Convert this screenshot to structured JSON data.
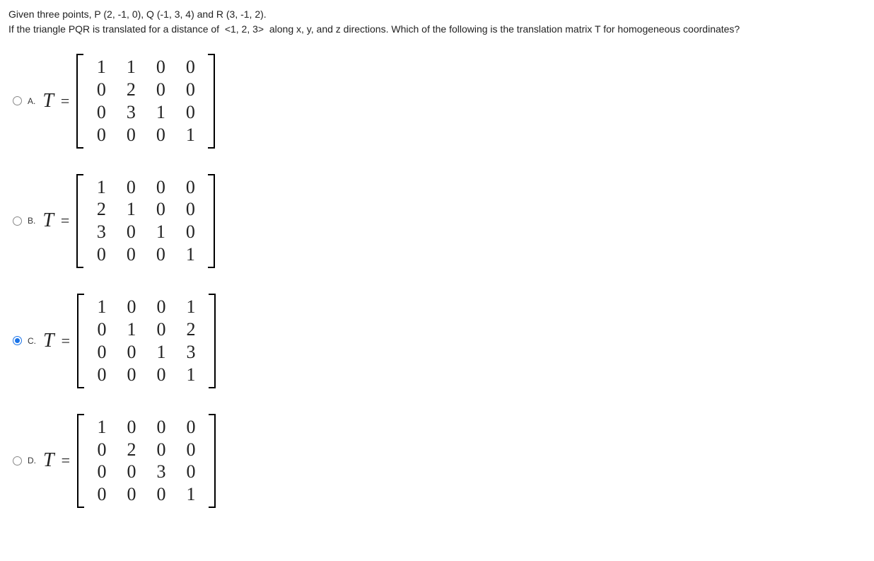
{
  "question": {
    "line1": "Given three points, P (2, -1, 0), Q (-1, 3, 4) and R (3, -1, 2).",
    "line2": "If the triangle PQR is translated for a distance of  <1, 2, 3>  along x, y, and z directions. Which of the following is the translation matrix T for homogeneous coordinates?"
  },
  "equation": {
    "var": "T",
    "equals": "="
  },
  "options": [
    {
      "letter": "A.",
      "selected": false,
      "matrix": [
        [
          1,
          1,
          0,
          0
        ],
        [
          0,
          2,
          0,
          0
        ],
        [
          0,
          3,
          1,
          0
        ],
        [
          0,
          0,
          0,
          1
        ]
      ]
    },
    {
      "letter": "B.",
      "selected": false,
      "matrix": [
        [
          1,
          0,
          0,
          0
        ],
        [
          2,
          1,
          0,
          0
        ],
        [
          3,
          0,
          1,
          0
        ],
        [
          0,
          0,
          0,
          1
        ]
      ]
    },
    {
      "letter": "C.",
      "selected": true,
      "matrix": [
        [
          1,
          0,
          0,
          1
        ],
        [
          0,
          1,
          0,
          2
        ],
        [
          0,
          0,
          1,
          3
        ],
        [
          0,
          0,
          0,
          1
        ]
      ]
    },
    {
      "letter": "D.",
      "selected": false,
      "matrix": [
        [
          1,
          0,
          0,
          0
        ],
        [
          0,
          2,
          0,
          0
        ],
        [
          0,
          0,
          3,
          0
        ],
        [
          0,
          0,
          0,
          1
        ]
      ]
    }
  ]
}
